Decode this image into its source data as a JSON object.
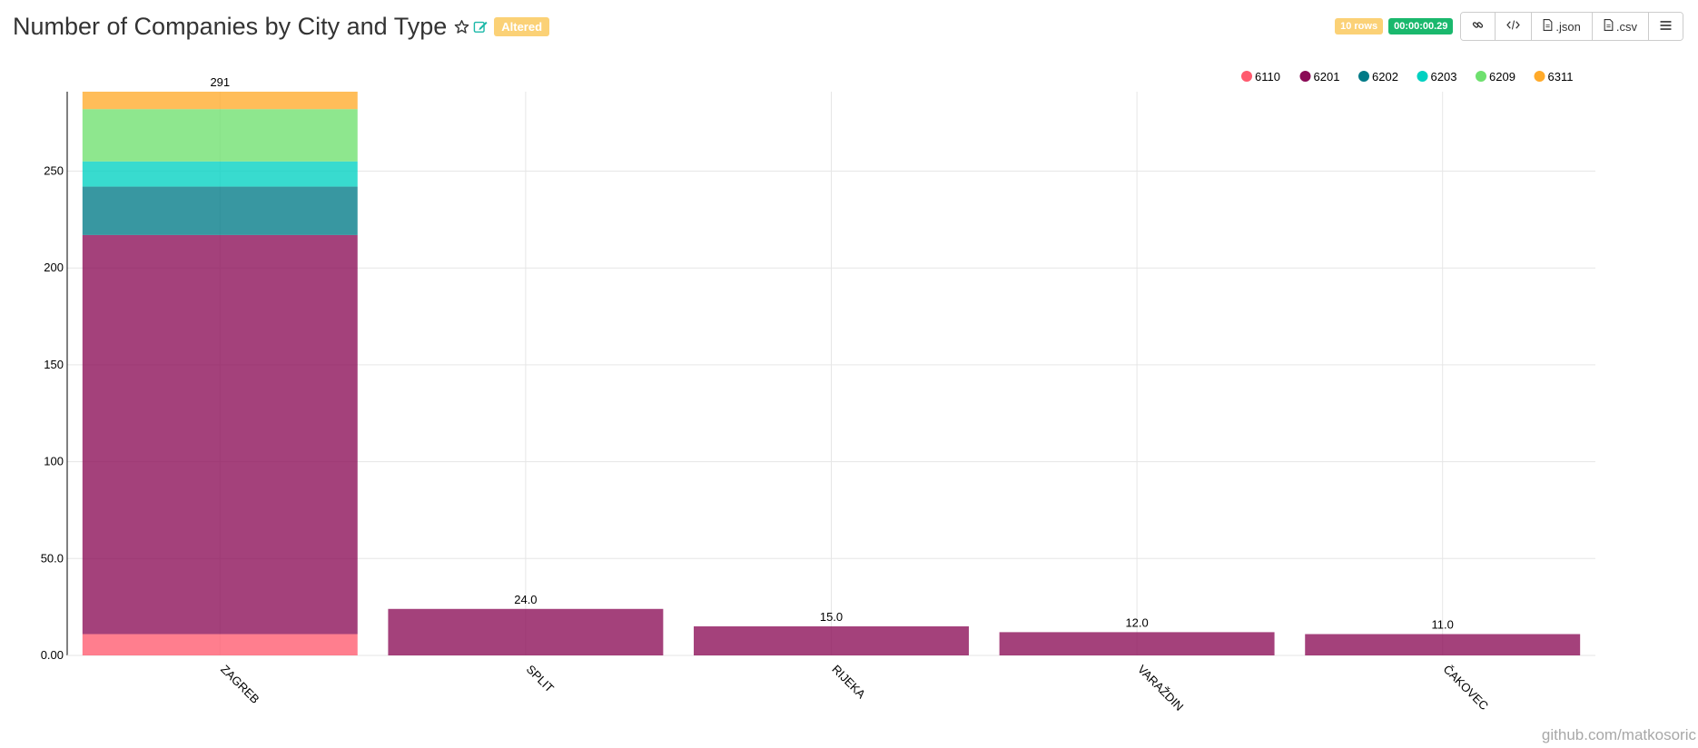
{
  "header": {
    "title": "Number of Companies by City and Type",
    "altered_label": "Altered",
    "rows_label": "10 rows",
    "time_label": "00:00:00.29",
    "buttons": {
      "json_label": ".json",
      "csv_label": ".csv"
    }
  },
  "watermark": "github.com/matkosoric",
  "colors": {
    "title": "#333333",
    "altered_badge": "#fbd176",
    "time_badge": "#1ab86d",
    "edit_icon": "#1ab8a8"
  },
  "icons": [
    "star-icon",
    "edit-icon",
    "link-icon",
    "code-icon",
    "file-icon",
    "menu-icon"
  ],
  "chart_data": {
    "type": "bar",
    "stacked": true,
    "categories": [
      "ZAGREB",
      "SPLIT",
      "RIJEKA",
      "VARAŽDIN",
      "ČAKOVEC"
    ],
    "series": [
      {
        "name": "6110",
        "color": "#ff5a6e",
        "values": [
          11,
          0,
          0,
          0,
          0
        ]
      },
      {
        "name": "6201",
        "color": "#8a0b56",
        "values": [
          206,
          24,
          15,
          12,
          11
        ]
      },
      {
        "name": "6202",
        "color": "#007a87",
        "values": [
          25,
          0,
          0,
          0,
          0
        ]
      },
      {
        "name": "6203",
        "color": "#00d1c1",
        "values": [
          13,
          0,
          0,
          0,
          0
        ]
      },
      {
        "name": "6209",
        "color": "#6ee06e",
        "values": [
          27,
          0,
          0,
          0,
          0
        ]
      },
      {
        "name": "6311",
        "color": "#ffaa2a",
        "values": [
          9,
          0,
          0,
          0,
          0
        ]
      }
    ],
    "totals_labels": [
      "291",
      "24.0",
      "15.0",
      "12.0",
      "11.0"
    ],
    "yticks": [
      "0.00",
      "50.0",
      "100",
      "150",
      "200",
      "250"
    ],
    "ylim": [
      0,
      291
    ],
    "grid": true,
    "legend_position": "top-right",
    "xlabel_rotation": "45deg",
    "bar_opacity": 0.78
  }
}
